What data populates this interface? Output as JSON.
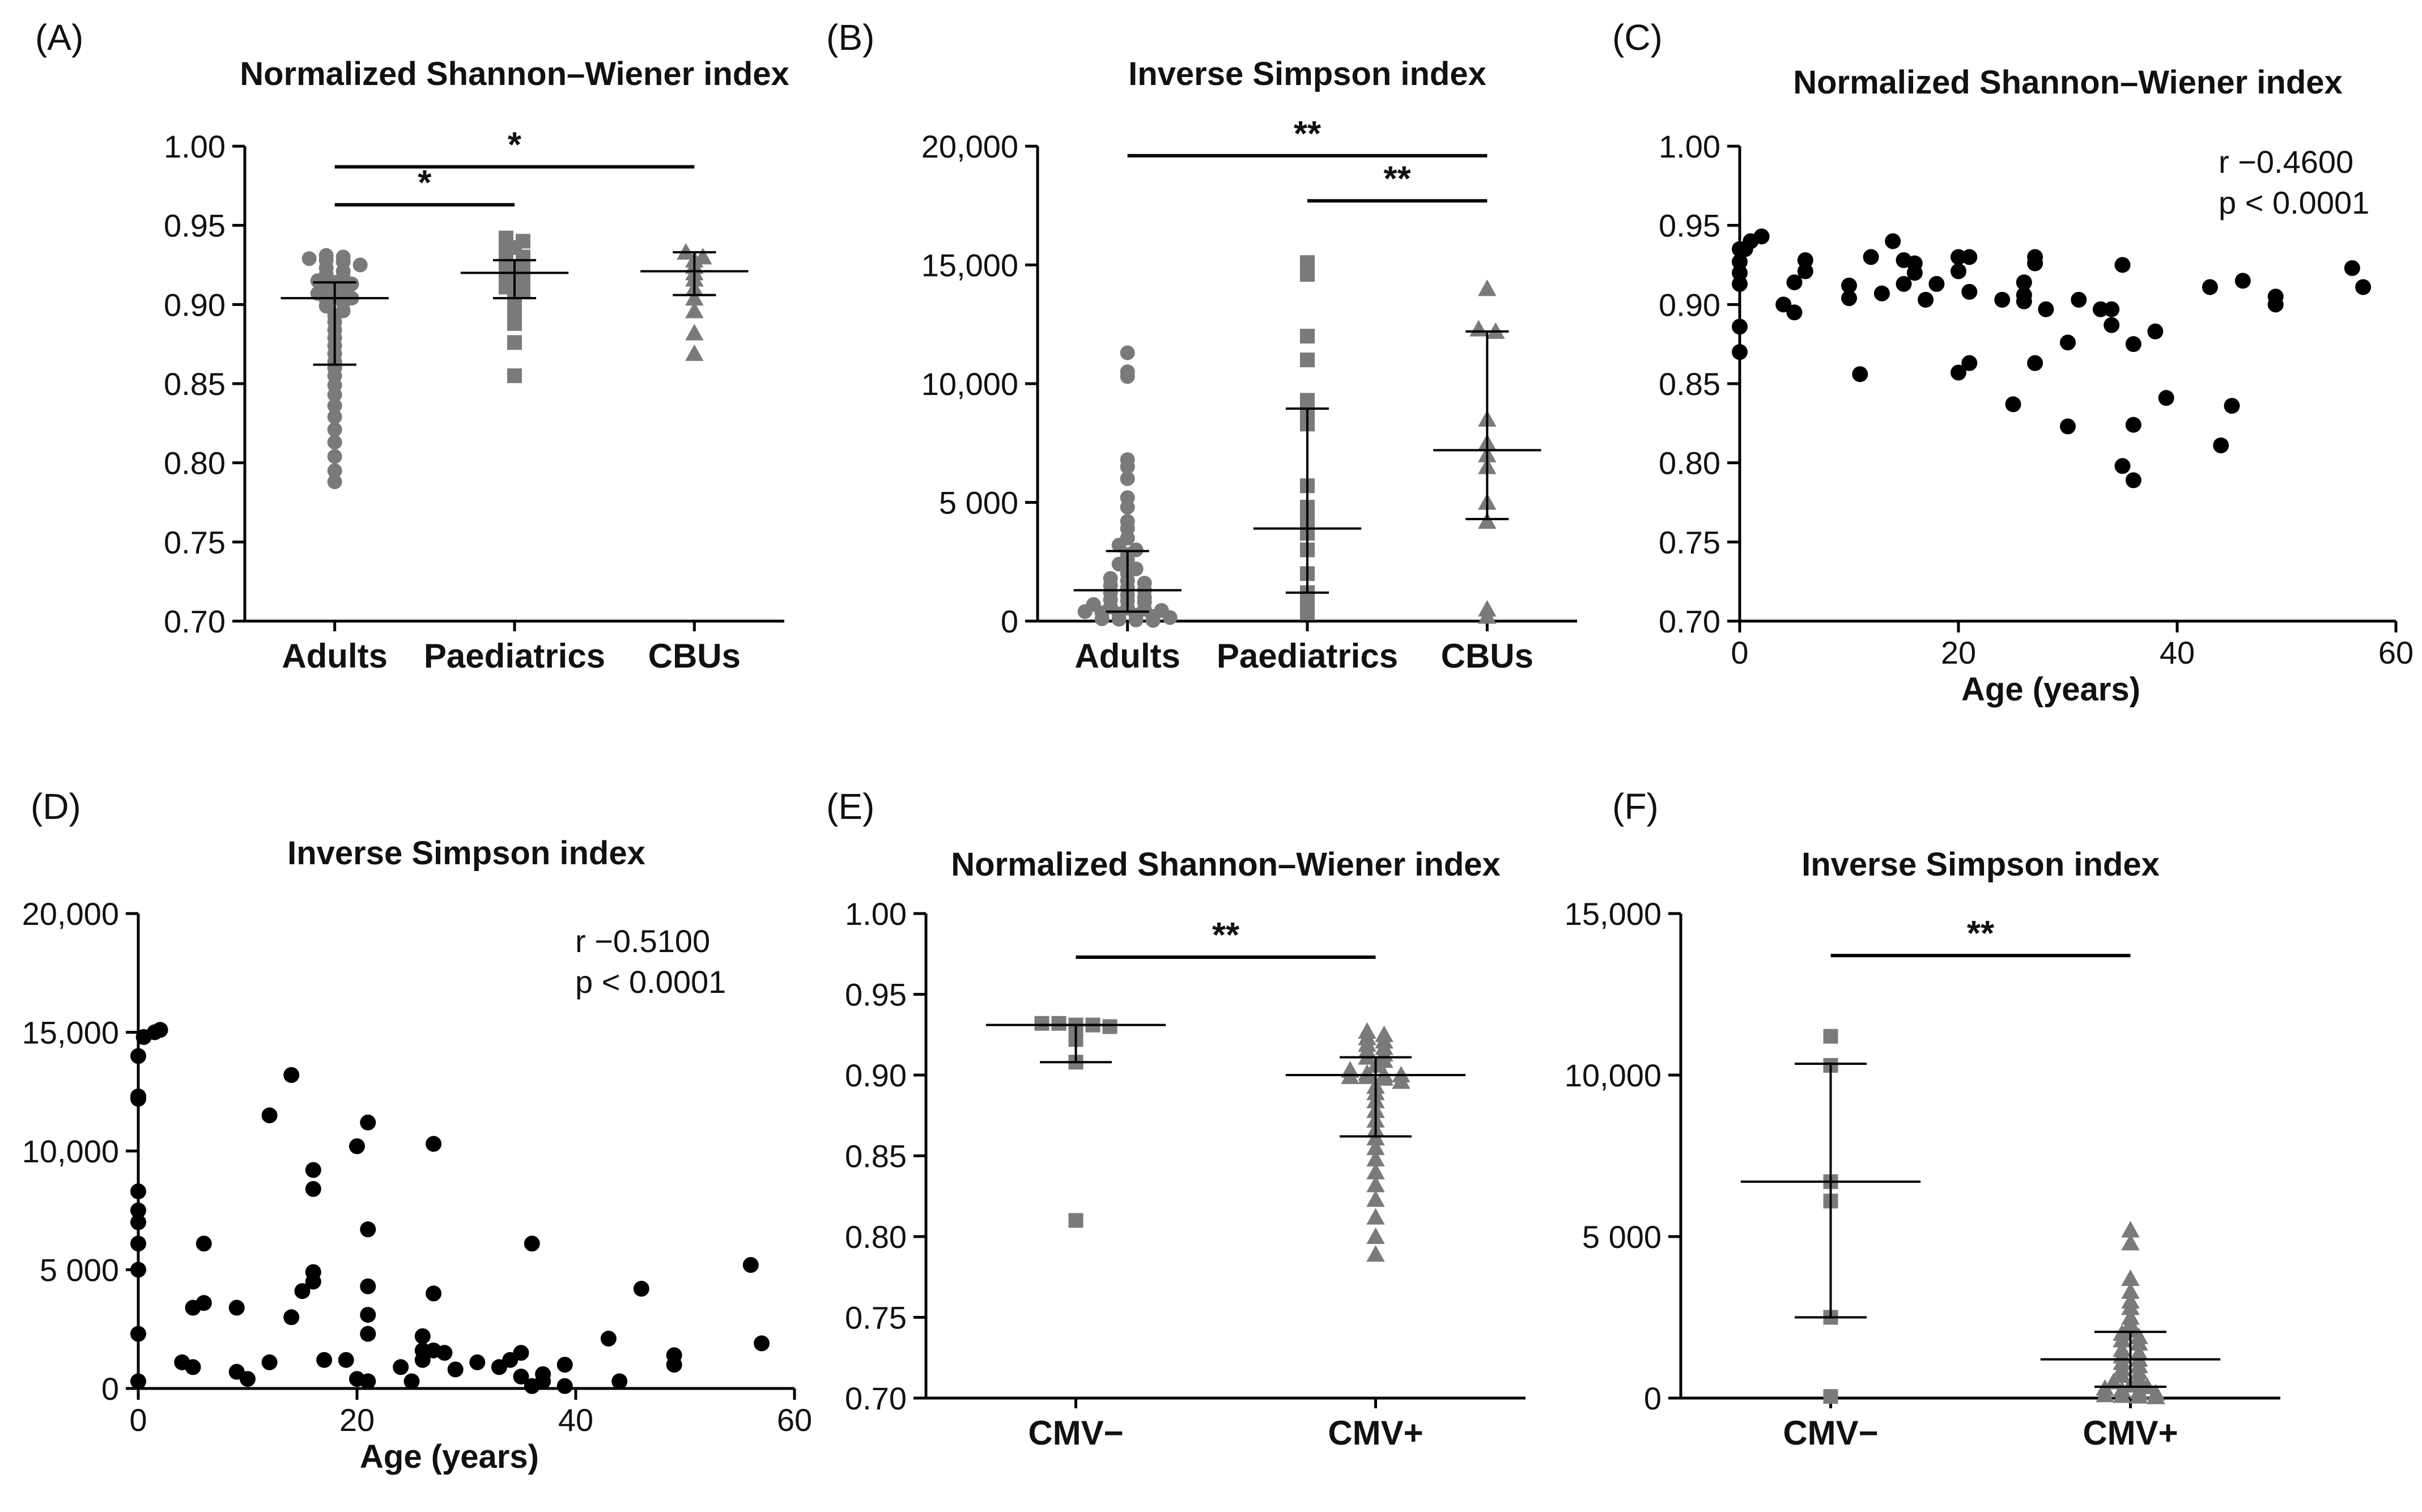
{
  "colors": {
    "axis": "#000000",
    "dots_grey": "#7a7a7a",
    "dots_black": "#000000"
  },
  "chart_data": [
    {
      "id": "A",
      "type": "scatter",
      "panel_label": "(A)",
      "title": "Normalized Shannon–Wiener index",
      "categories": [
        "Adults",
        "Paediatrics",
        "CBUs"
      ],
      "ylim": [
        0.7,
        1.0
      ],
      "yticks": [
        {
          "value": 0.7,
          "label": "0.70"
        },
        {
          "value": 0.75,
          "label": "0.75"
        },
        {
          "value": 0.8,
          "label": "0.80"
        },
        {
          "value": 0.85,
          "label": "0.85"
        },
        {
          "value": 0.9,
          "label": "0.90"
        },
        {
          "value": 0.95,
          "label": "0.95"
        },
        {
          "value": 1.0,
          "label": "1.00"
        }
      ],
      "series": [
        {
          "category": "Adults",
          "marker": "circle",
          "color": "#7a7a7a",
          "median": 0.904,
          "q1": 0.862,
          "q3": 0.914,
          "values": [
            0.931,
            0.93,
            0.929,
            0.928,
            0.927,
            0.925,
            0.923,
            0.921,
            0.919,
            0.917,
            0.915,
            0.914,
            0.913,
            0.911,
            0.909,
            0.907,
            0.905,
            0.904,
            0.903,
            0.901,
            0.899,
            0.896,
            0.893,
            0.889,
            0.884,
            0.879,
            0.874,
            0.869,
            0.864,
            0.86,
            0.855,
            0.849,
            0.843,
            0.836,
            0.829,
            0.821,
            0.813,
            0.804,
            0.795,
            0.788
          ]
        },
        {
          "category": "Paediatrics",
          "marker": "square",
          "color": "#7a7a7a",
          "median": 0.92,
          "q1": 0.904,
          "q3": 0.928,
          "values": [
            0.942,
            0.94,
            0.936,
            0.933,
            0.93,
            0.928,
            0.926,
            0.924,
            0.922,
            0.92,
            0.917,
            0.914,
            0.911,
            0.908,
            0.905,
            0.901,
            0.896,
            0.888,
            0.876,
            0.855
          ]
        },
        {
          "category": "CBUs",
          "marker": "triangle",
          "color": "#7a7a7a",
          "median": 0.921,
          "q1": 0.906,
          "q3": 0.933,
          "values": [
            0.933,
            0.93,
            0.928,
            0.924,
            0.92,
            0.916,
            0.91,
            0.904,
            0.896,
            0.882,
            0.869
          ]
        }
      ],
      "significance": [
        {
          "label": "*",
          "from": "Adults",
          "to": "Paediatrics",
          "y": 0.963
        },
        {
          "label": "*",
          "from": "Adults",
          "to": "CBUs",
          "y": 0.987
        }
      ]
    },
    {
      "id": "B",
      "type": "scatter",
      "panel_label": "(B)",
      "title": "Inverse Simpson index",
      "categories": [
        "Adults",
        "Paediatrics",
        "CBUs"
      ],
      "ylim": [
        0,
        20000
      ],
      "yticks": [
        {
          "value": 0,
          "label": "0"
        },
        {
          "value": 5000,
          "label": "5 000"
        },
        {
          "value": 10000,
          "label": "10,000"
        },
        {
          "value": 15000,
          "label": "15,000"
        },
        {
          "value": 20000,
          "label": "20,000"
        }
      ],
      "series": [
        {
          "category": "Adults",
          "marker": "circle",
          "color": "#7a7a7a",
          "median": 1300,
          "q1": 400,
          "q3": 2950,
          "values": [
            11300,
            10500,
            10300,
            6800,
            6500,
            6000,
            5200,
            4800,
            4200,
            3900,
            3500,
            3200,
            3000,
            2800,
            2600,
            2400,
            2200,
            2000,
            1800,
            1700,
            1600,
            1500,
            1400,
            1300,
            1200,
            1100,
            1000,
            900,
            850,
            800,
            700,
            600,
            550,
            500,
            450,
            400,
            350,
            300,
            250,
            200,
            150,
            100,
            80,
            50,
            30
          ]
        },
        {
          "category": "Paediatrics",
          "marker": "square",
          "color": "#7a7a7a",
          "median": 3900,
          "q1": 1200,
          "q3": 8950,
          "values": [
            15100,
            14900,
            14600,
            12000,
            11000,
            9300,
            8900,
            8300,
            5700,
            4800,
            4200,
            3700,
            3000,
            2000,
            1200,
            900,
            600,
            350
          ]
        },
        {
          "category": "CBUs",
          "marker": "triangle",
          "color": "#7a7a7a",
          "median": 7200,
          "q1": 4300,
          "q3": 12200,
          "values": [
            14000,
            12300,
            12200,
            8500,
            7500,
            7000,
            6500,
            5000,
            4200,
            500,
            200
          ]
        }
      ],
      "significance": [
        {
          "label": "**",
          "from": "Paediatrics",
          "to": "CBUs",
          "y": 17700
        },
        {
          "label": "**",
          "from": "Adults",
          "to": "CBUs",
          "y": 19600
        }
      ]
    },
    {
      "id": "C",
      "type": "scatter",
      "panel_label": "(C)",
      "title": "Normalized Shannon–Wiener index",
      "xlabel": "Age (years)",
      "xlim": [
        0,
        60
      ],
      "ylim": [
        0.7,
        1.0
      ],
      "xticks": [
        {
          "value": 0,
          "label": "0"
        },
        {
          "value": 20,
          "label": "20"
        },
        {
          "value": 40,
          "label": "40"
        },
        {
          "value": 60,
          "label": "60"
        }
      ],
      "yticks": [
        {
          "value": 0.7,
          "label": "0.70"
        },
        {
          "value": 0.75,
          "label": "0.75"
        },
        {
          "value": 0.8,
          "label": "0.80"
        },
        {
          "value": 0.85,
          "label": "0.85"
        },
        {
          "value": 0.9,
          "label": "0.90"
        },
        {
          "value": 0.95,
          "label": "0.95"
        },
        {
          "value": 1.0,
          "label": "1.00"
        }
      ],
      "r_text": "r −0.4600",
      "p_text": "p < 0.0001",
      "points": [
        [
          0.0,
          0.935
        ],
        [
          0.0,
          0.927
        ],
        [
          0.0,
          0.92
        ],
        [
          0.0,
          0.913
        ],
        [
          0.0,
          0.886
        ],
        [
          0.0,
          0.87
        ],
        [
          0.5,
          0.935
        ],
        [
          1.0,
          0.94
        ],
        [
          2.0,
          0.943
        ],
        [
          4.0,
          0.9
        ],
        [
          5.0,
          0.895
        ],
        [
          5.0,
          0.914
        ],
        [
          6.0,
          0.928
        ],
        [
          6.0,
          0.921
        ],
        [
          10.0,
          0.912
        ],
        [
          10.0,
          0.904
        ],
        [
          11.0,
          0.856
        ],
        [
          12.0,
          0.93
        ],
        [
          13.0,
          0.907
        ],
        [
          14.0,
          0.94
        ],
        [
          15.0,
          0.928
        ],
        [
          15.0,
          0.913
        ],
        [
          16.0,
          0.926
        ],
        [
          16.0,
          0.92
        ],
        [
          17.0,
          0.903
        ],
        [
          18.0,
          0.913
        ],
        [
          20.0,
          0.93
        ],
        [
          20.0,
          0.921
        ],
        [
          20.0,
          0.857
        ],
        [
          21.0,
          0.93
        ],
        [
          21.0,
          0.908
        ],
        [
          21.0,
          0.863
        ],
        [
          24.0,
          0.903
        ],
        [
          25.0,
          0.837
        ],
        [
          26.0,
          0.914
        ],
        [
          26.0,
          0.906
        ],
        [
          26.0,
          0.902
        ],
        [
          27.0,
          0.93
        ],
        [
          27.0,
          0.926
        ],
        [
          27.0,
          0.863
        ],
        [
          28.0,
          0.897
        ],
        [
          30.0,
          0.876
        ],
        [
          30.0,
          0.823
        ],
        [
          31.0,
          0.903
        ],
        [
          33.0,
          0.897
        ],
        [
          34.0,
          0.897
        ],
        [
          34.0,
          0.887
        ],
        [
          35.0,
          0.925
        ],
        [
          35.0,
          0.798
        ],
        [
          36.0,
          0.875
        ],
        [
          36.0,
          0.824
        ],
        [
          36.0,
          0.789
        ],
        [
          38.0,
          0.883
        ],
        [
          39.0,
          0.841
        ],
        [
          43.0,
          0.911
        ],
        [
          44.0,
          0.811
        ],
        [
          45.0,
          0.836
        ],
        [
          46.0,
          0.915
        ],
        [
          49.0,
          0.905
        ],
        [
          49.0,
          0.9
        ],
        [
          56.0,
          0.923
        ],
        [
          57.0,
          0.911
        ]
      ]
    },
    {
      "id": "D",
      "type": "scatter",
      "panel_label": "(D)",
      "title": "Inverse Simpson index",
      "xlabel": "Age (years)",
      "xlim": [
        0,
        60
      ],
      "ylim": [
        0,
        20000
      ],
      "xticks": [
        {
          "value": 0,
          "label": "0"
        },
        {
          "value": 20,
          "label": "20"
        },
        {
          "value": 40,
          "label": "40"
        },
        {
          "value": 60,
          "label": "60"
        }
      ],
      "yticks": [
        {
          "value": 0,
          "label": "0"
        },
        {
          "value": 5000,
          "label": "5 000"
        },
        {
          "value": 10000,
          "label": "10,000"
        },
        {
          "value": 15000,
          "label": "15,000"
        },
        {
          "value": 20000,
          "label": "20,000"
        }
      ],
      "r_text": "r −0.5100",
      "p_text": "p < 0.0001",
      "points": [
        [
          0.0,
          14000
        ],
        [
          0.0,
          12300
        ],
        [
          0.0,
          12200
        ],
        [
          0.0,
          8300
        ],
        [
          0.0,
          7500
        ],
        [
          0.0,
          7000
        ],
        [
          0.0,
          6100
        ],
        [
          0.0,
          5000
        ],
        [
          0.0,
          2300
        ],
        [
          0.0,
          300
        ],
        [
          0.5,
          14800
        ],
        [
          1.5,
          15000
        ],
        [
          2.0,
          15100
        ],
        [
          4.0,
          1100
        ],
        [
          5.0,
          3400
        ],
        [
          5.0,
          900
        ],
        [
          6.0,
          6100
        ],
        [
          6.0,
          3600
        ],
        [
          9.0,
          3400
        ],
        [
          9.0,
          700
        ],
        [
          10.0,
          400
        ],
        [
          12.0,
          11500
        ],
        [
          12.0,
          1100
        ],
        [
          14.0,
          13200
        ],
        [
          14.0,
          3000
        ],
        [
          15.0,
          4100
        ],
        [
          16.0,
          9200
        ],
        [
          16.0,
          8400
        ],
        [
          16.0,
          4900
        ],
        [
          16.0,
          4500
        ],
        [
          17.0,
          1200
        ],
        [
          19.0,
          1200
        ],
        [
          20.0,
          10200
        ],
        [
          20.0,
          400
        ],
        [
          21.0,
          11200
        ],
        [
          21.0,
          6700
        ],
        [
          21.0,
          4300
        ],
        [
          21.0,
          3100
        ],
        [
          21.0,
          2300
        ],
        [
          21.0,
          300
        ],
        [
          24.0,
          900
        ],
        [
          25.0,
          300
        ],
        [
          26.0,
          2200
        ],
        [
          26.0,
          1600
        ],
        [
          26.0,
          1200
        ],
        [
          27.0,
          10300
        ],
        [
          27.0,
          4000
        ],
        [
          27.0,
          1600
        ],
        [
          28.0,
          1500
        ],
        [
          29.0,
          800
        ],
        [
          31.0,
          1100
        ],
        [
          33.0,
          900
        ],
        [
          34.0,
          1200
        ],
        [
          35.0,
          1500
        ],
        [
          35.0,
          500
        ],
        [
          36.0,
          6100
        ],
        [
          36.0,
          100
        ],
        [
          37.0,
          600
        ],
        [
          37.0,
          300
        ],
        [
          39.0,
          1000
        ],
        [
          39.0,
          100
        ],
        [
          43.0,
          2100
        ],
        [
          44.0,
          300
        ],
        [
          46.0,
          4200
        ],
        [
          49.0,
          1400
        ],
        [
          49.0,
          1000
        ],
        [
          56.0,
          5200
        ],
        [
          57.0,
          1900
        ]
      ]
    },
    {
      "id": "E",
      "type": "scatter",
      "panel_label": "(E)",
      "title": "Normalized Shannon–Wiener index",
      "categories": [
        "CMV−",
        "CMV+"
      ],
      "ylim": [
        0.7,
        1.0
      ],
      "yticks": [
        {
          "value": 0.7,
          "label": "0.70"
        },
        {
          "value": 0.75,
          "label": "0.75"
        },
        {
          "value": 0.8,
          "label": "0.80"
        },
        {
          "value": 0.85,
          "label": "0.85"
        },
        {
          "value": 0.9,
          "label": "0.90"
        },
        {
          "value": 0.95,
          "label": "0.95"
        },
        {
          "value": 1.0,
          "label": "1.00"
        }
      ],
      "series": [
        {
          "category": "CMV−",
          "marker": "square",
          "color": "#7a7a7a",
          "median": 0.931,
          "q1": 0.908,
          "q3": 0.931,
          "values": [
            0.932,
            0.932,
            0.931,
            0.931,
            0.93,
            0.922,
            0.908,
            0.81
          ]
        },
        {
          "category": "CMV+",
          "marker": "triangle",
          "color": "#7a7a7a",
          "median": 0.9,
          "q1": 0.862,
          "q3": 0.911,
          "values": [
            0.927,
            0.925,
            0.923,
            0.921,
            0.919,
            0.917,
            0.915,
            0.913,
            0.911,
            0.909,
            0.906,
            0.903,
            0.901,
            0.9,
            0.9,
            0.899,
            0.899,
            0.898,
            0.896,
            0.893,
            0.889,
            0.884,
            0.878,
            0.872,
            0.866,
            0.861,
            0.855,
            0.848,
            0.84,
            0.832,
            0.823,
            0.812,
            0.8,
            0.789
          ]
        }
      ],
      "significance": [
        {
          "label": "**",
          "from": "CMV−",
          "to": "CMV+",
          "y": 0.973
        }
      ]
    },
    {
      "id": "F",
      "type": "scatter",
      "panel_label": "(F)",
      "title": "Inverse Simpson index",
      "categories": [
        "CMV−",
        "CMV+"
      ],
      "ylim": [
        0,
        15000
      ],
      "yticks": [
        {
          "value": 0,
          "label": "0"
        },
        {
          "value": 5000,
          "label": "5 000"
        },
        {
          "value": 10000,
          "label": "10,000"
        },
        {
          "value": 15000,
          "label": "15,000"
        }
      ],
      "series": [
        {
          "category": "CMV−",
          "marker": "square",
          "color": "#7a7a7a",
          "median": 6700,
          "q1": 2500,
          "q3": 10350,
          "values": [
            11200,
            10300,
            6700,
            6100,
            2500,
            50
          ]
        },
        {
          "category": "CMV+",
          "marker": "triangle",
          "color": "#7a7a7a",
          "median": 1200,
          "q1": 350,
          "q3": 2050,
          "values": [
            5200,
            4800,
            3700,
            3300,
            3000,
            2800,
            2500,
            2300,
            2100,
            2000,
            1900,
            1800,
            1700,
            1500,
            1400,
            1300,
            1200,
            1100,
            1000,
            900,
            800,
            700,
            600,
            500,
            400,
            350,
            300,
            250,
            200,
            150,
            100,
            80,
            60,
            40
          ]
        }
      ],
      "significance": [
        {
          "label": "**",
          "from": "CMV−",
          "to": "CMV+",
          "y": 13700
        }
      ]
    }
  ]
}
